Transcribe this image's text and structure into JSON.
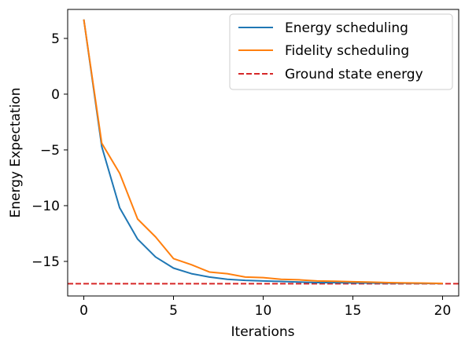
{
  "chart_data": {
    "type": "line",
    "title": "",
    "xlabel": "Iterations",
    "ylabel": "Energy Expectation",
    "xlim": [
      -0.9,
      20.9
    ],
    "ylim": [
      -18.1,
      7.6
    ],
    "xticks": [
      0,
      5,
      10,
      15,
      20
    ],
    "xtick_labels": [
      "0",
      "5",
      "10",
      "15",
      "20"
    ],
    "yticks": [
      5,
      0,
      -5,
      -10,
      -15
    ],
    "ytick_labels": [
      "5",
      "0",
      "−5",
      "−10",
      "−15"
    ],
    "grid": false,
    "legend_position": "top-right",
    "x": [
      0,
      1,
      2,
      3,
      4,
      5,
      6,
      7,
      8,
      9,
      10,
      11,
      12,
      13,
      14,
      15,
      16,
      17,
      18,
      19,
      20
    ],
    "series": [
      {
        "name": "Energy scheduling",
        "color": "#1f77b4",
        "style": "solid",
        "values": [
          6.7,
          -4.7,
          -10.2,
          -13.0,
          -14.6,
          -15.6,
          -16.1,
          -16.4,
          -16.6,
          -16.7,
          -16.75,
          -16.8,
          -16.85,
          -16.9,
          -16.9,
          -16.92,
          -16.94,
          -16.95,
          -16.96,
          -16.97,
          -16.98
        ]
      },
      {
        "name": "Fidelity scheduling",
        "color": "#ff7f0e",
        "style": "solid",
        "values": [
          6.7,
          -4.4,
          -7.1,
          -11.2,
          -12.8,
          -14.75,
          -15.3,
          -15.95,
          -16.1,
          -16.4,
          -16.45,
          -16.6,
          -16.65,
          -16.75,
          -16.78,
          -16.82,
          -16.86,
          -16.9,
          -16.93,
          -16.95,
          -16.97
        ]
      }
    ],
    "reference_lines": [
      {
        "name": "Ground state energy",
        "color": "#d62728",
        "style": "dashed",
        "y": -17.0
      }
    ]
  }
}
